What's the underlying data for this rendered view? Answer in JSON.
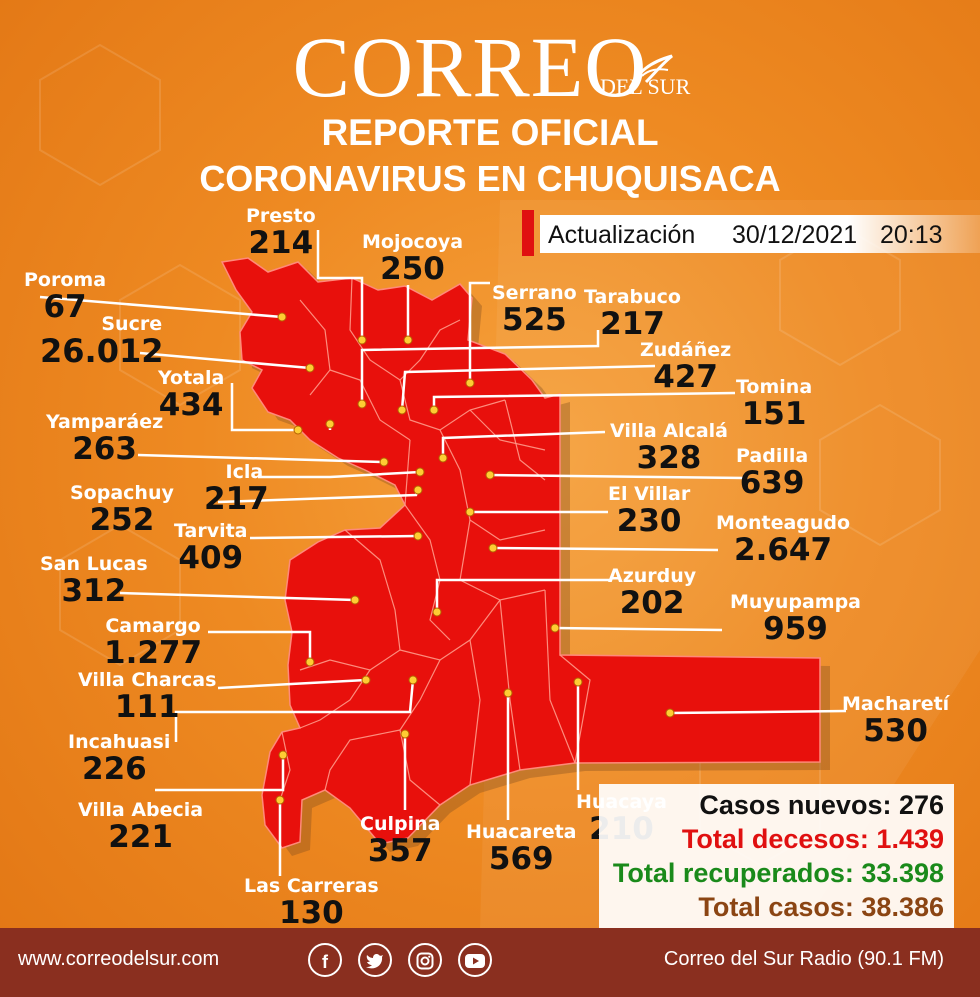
{
  "brand": {
    "main": "CORREO",
    "sub": "DEL SUR"
  },
  "title1": "REPORTE OFICIAL",
  "title2": "CORONAVIRUS EN CHUQUISACA",
  "update": {
    "label": "Actualización",
    "date": "30/12/2021",
    "time": "20:13"
  },
  "municipalities": [
    {
      "name": "Presto",
      "value": "214"
    },
    {
      "name": "Mojocoya",
      "value": "250"
    },
    {
      "name": "Poroma",
      "value": "67"
    },
    {
      "name": "Serrano",
      "value": "525"
    },
    {
      "name": "Tarabuco",
      "value": "217"
    },
    {
      "name": "Sucre",
      "value": "26.012"
    },
    {
      "name": "Zudáñez",
      "value": "427"
    },
    {
      "name": "Yotala",
      "value": "434"
    },
    {
      "name": "Tomina",
      "value": "151"
    },
    {
      "name": "Yamparáez",
      "value": "263"
    },
    {
      "name": "Villa Alcalá",
      "value": "328"
    },
    {
      "name": "Padilla",
      "value": "639"
    },
    {
      "name": "Icla",
      "value": "217"
    },
    {
      "name": "Sopachuy",
      "value": "252"
    },
    {
      "name": "El Villar",
      "value": "230"
    },
    {
      "name": "Tarvita",
      "value": "409"
    },
    {
      "name": "Monteagudo",
      "value": "2.647"
    },
    {
      "name": "San Lucas",
      "value": "312"
    },
    {
      "name": "Azurduy",
      "value": "202"
    },
    {
      "name": "Muyupampa",
      "value": "959"
    },
    {
      "name": "Camargo",
      "value": "1.277"
    },
    {
      "name": "Villa Charcas",
      "value": "111"
    },
    {
      "name": "Macharetí",
      "value": "530"
    },
    {
      "name": "Incahuasi",
      "value": "226"
    },
    {
      "name": "Villa Abecia",
      "value": "221"
    },
    {
      "name": "Huacaya",
      "value": "210"
    },
    {
      "name": "Culpina",
      "value": "357"
    },
    {
      "name": "Huacareta",
      "value": "569"
    },
    {
      "name": "Las Carreras",
      "value": "130"
    }
  ],
  "stats": {
    "new": "Casos nuevos: 276",
    "deaths": "Total decesos: 1.439",
    "recovered": "Total recuperados: 33.398",
    "total": "Total casos: 38.386"
  },
  "footer": {
    "website": "www.correodelsur.com",
    "radio": "Correo del Sur Radio (90.1 FM)"
  },
  "social_icons": [
    "facebook-icon",
    "twitter-icon",
    "instagram-icon",
    "youtube-icon"
  ],
  "colors": {
    "background": "#ee8a22",
    "map": "#e8100c",
    "footer": "#8a2f1f",
    "deaths": "#e01010",
    "recovered": "#1a8a1a",
    "total": "#8b4513"
  }
}
